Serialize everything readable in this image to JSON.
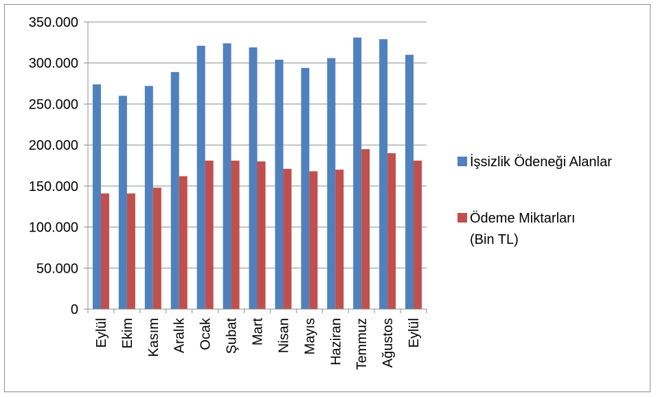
{
  "chart_data": {
    "type": "bar",
    "categories": [
      "Eylül",
      "Ekim",
      "Kasım",
      "Aralık",
      "Ocak",
      "Şubat",
      "Mart",
      "Nisan",
      "Mayıs",
      "Haziran",
      "Temmuz",
      "Ağustos",
      "Eylül"
    ],
    "series": [
      {
        "name": "İşsizlik Ödeneği Alanlar",
        "color": "#4F81BD",
        "values": [
          274000,
          260000,
          272000,
          289000,
          321000,
          324000,
          319000,
          304000,
          294000,
          306000,
          331000,
          329000,
          310000
        ]
      },
      {
        "name": "Ödeme Miktarları (Bin TL)",
        "color": "#C0504D",
        "values": [
          141000,
          141000,
          148000,
          162000,
          181000,
          181000,
          180000,
          171000,
          168000,
          170000,
          195000,
          190000,
          181000
        ]
      }
    ],
    "yticks": [
      "0",
      "50.000",
      "100.000",
      "150.000",
      "200.000",
      "250.000",
      "300.000",
      "350.000"
    ],
    "ylim": [
      0,
      350000
    ],
    "legend": {
      "position": "right",
      "lines": [
        [
          "İşsizlik Ödeneği Alanlar"
        ],
        [
          "Ödeme Miktarları",
          "(Bin TL)"
        ]
      ]
    },
    "grid": true
  }
}
